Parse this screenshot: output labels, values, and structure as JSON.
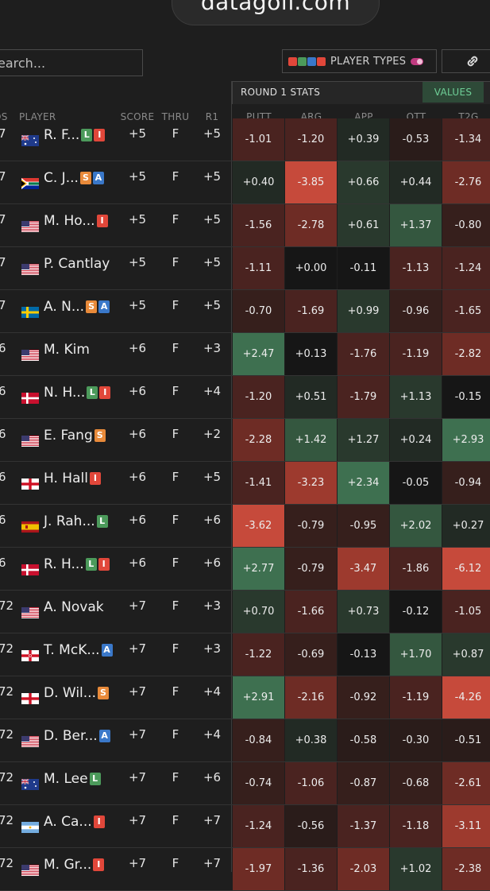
{
  "browser": {
    "url": "datagolf.com"
  },
  "search": {
    "placeholder": "earch..."
  },
  "player_types": {
    "label": "PLAYER TYPES",
    "colors": [
      "#e1473a",
      "#4c9a5b",
      "#3a78c9",
      "#e1473a"
    ]
  },
  "stats_header": {
    "title": "ROUND 1 STATS",
    "values_button": "VALUES"
  },
  "columns": {
    "pos": "OS",
    "player": "PLAYER",
    "score": "SCORE",
    "thru": "THRU",
    "r1": "R1",
    "putt": "PUTT",
    "arg": "ARG",
    "app": "APP",
    "ott": "OTT",
    "t2g": "T2G"
  },
  "rows": [
    {
      "pos": "7",
      "name": "R. F...",
      "flag": "au",
      "badges": [
        "L",
        "I"
      ],
      "score": "+5",
      "thru": "F",
      "r1": "+5",
      "stats": [
        "-1.01",
        "-1.20",
        "+0.39",
        "-0.53",
        "-1.34"
      ]
    },
    {
      "pos": "7",
      "name": "C. J...",
      "flag": "za",
      "badges": [
        "S",
        "A"
      ],
      "score": "+5",
      "thru": "F",
      "r1": "+5",
      "stats": [
        "+0.40",
        "-3.85",
        "+0.66",
        "+0.44",
        "-2.76"
      ]
    },
    {
      "pos": "7",
      "name": "M. Ho...",
      "flag": "us",
      "badges": [
        "I"
      ],
      "score": "+5",
      "thru": "F",
      "r1": "+5",
      "stats": [
        "-1.56",
        "-2.78",
        "+0.61",
        "+1.37",
        "-0.80"
      ]
    },
    {
      "pos": "7",
      "name": "P. Cantlay",
      "flag": "us",
      "badges": [],
      "score": "+5",
      "thru": "F",
      "r1": "+5",
      "stats": [
        "-1.11",
        "+0.00",
        "-0.11",
        "-1.13",
        "-1.24"
      ]
    },
    {
      "pos": "7",
      "name": "A. N...",
      "flag": "se",
      "badges": [
        "S",
        "A"
      ],
      "score": "+5",
      "thru": "F",
      "r1": "+5",
      "stats": [
        "-0.70",
        "-1.69",
        "+0.99",
        "-0.96",
        "-1.65"
      ]
    },
    {
      "pos": "6",
      "name": "M. Kim",
      "flag": "us",
      "badges": [],
      "score": "+6",
      "thru": "F",
      "r1": "+3",
      "stats": [
        "+2.47",
        "+0.13",
        "-1.76",
        "-1.19",
        "-2.82"
      ]
    },
    {
      "pos": "6",
      "name": "N. H...",
      "flag": "dk",
      "badges": [
        "L",
        "I"
      ],
      "score": "+6",
      "thru": "F",
      "r1": "+4",
      "stats": [
        "-1.20",
        "+0.51",
        "-1.79",
        "+1.13",
        "-0.15"
      ]
    },
    {
      "pos": "6",
      "name": "E. Fang",
      "flag": "us",
      "badges": [
        "S"
      ],
      "score": "+6",
      "thru": "F",
      "r1": "+2",
      "stats": [
        "-2.28",
        "+1.42",
        "+1.27",
        "+0.24",
        "+2.93"
      ]
    },
    {
      "pos": "6",
      "name": "H. Hall",
      "flag": "en",
      "badges": [
        "I"
      ],
      "score": "+6",
      "thru": "F",
      "r1": "+5",
      "stats": [
        "-1.41",
        "-3.23",
        "+2.34",
        "-0.05",
        "-0.94"
      ]
    },
    {
      "pos": "6",
      "name": "J. Rah...",
      "flag": "es",
      "badges": [
        "L"
      ],
      "score": "+6",
      "thru": "F",
      "r1": "+6",
      "stats": [
        "-3.62",
        "-0.79",
        "-0.95",
        "+2.02",
        "+0.27"
      ]
    },
    {
      "pos": "6",
      "name": "R. H...",
      "flag": "dk",
      "badges": [
        "L",
        "I"
      ],
      "score": "+6",
      "thru": "F",
      "r1": "+6",
      "stats": [
        "+2.77",
        "-0.79",
        "-3.47",
        "-1.86",
        "-6.12"
      ]
    },
    {
      "pos": "72",
      "name": "A. Novak",
      "flag": "us",
      "badges": [],
      "score": "+7",
      "thru": "F",
      "r1": "+3",
      "stats": [
        "+0.70",
        "-1.66",
        "+0.73",
        "-0.12",
        "-1.05"
      ]
    },
    {
      "pos": "72",
      "name": "T. McK...",
      "flag": "ni",
      "badges": [
        "A"
      ],
      "score": "+7",
      "thru": "F",
      "r1": "+3",
      "stats": [
        "-1.22",
        "-0.69",
        "-0.13",
        "+1.70",
        "+0.87"
      ]
    },
    {
      "pos": "72",
      "name": "D. Wil...",
      "flag": "en",
      "badges": [
        "S"
      ],
      "score": "+7",
      "thru": "F",
      "r1": "+4",
      "stats": [
        "+2.91",
        "-2.16",
        "-0.92",
        "-1.19",
        "-4.26"
      ]
    },
    {
      "pos": "72",
      "name": "D. Ber...",
      "flag": "us",
      "badges": [
        "A"
      ],
      "score": "+7",
      "thru": "F",
      "r1": "+4",
      "stats": [
        "-0.84",
        "+0.38",
        "-0.58",
        "-0.30",
        "-0.51"
      ]
    },
    {
      "pos": "72",
      "name": "M. Lee",
      "flag": "au",
      "badges": [
        "L"
      ],
      "score": "+7",
      "thru": "F",
      "r1": "+6",
      "stats": [
        "-0.74",
        "-1.06",
        "-0.87",
        "-0.68",
        "-2.61"
      ]
    },
    {
      "pos": "72",
      "name": "A. Ca...",
      "flag": "ar",
      "badges": [
        "I"
      ],
      "score": "+7",
      "thru": "F",
      "r1": "+7",
      "stats": [
        "-1.24",
        "-0.56",
        "-1.37",
        "-1.18",
        "-3.11"
      ]
    },
    {
      "pos": "72",
      "name": "M. Gr...",
      "flag": "us",
      "badges": [
        "I"
      ],
      "score": "+7",
      "thru": "F",
      "r1": "+7",
      "stats": [
        "-1.97",
        "-1.36",
        "-2.03",
        "+1.02",
        "-2.38"
      ]
    }
  ]
}
